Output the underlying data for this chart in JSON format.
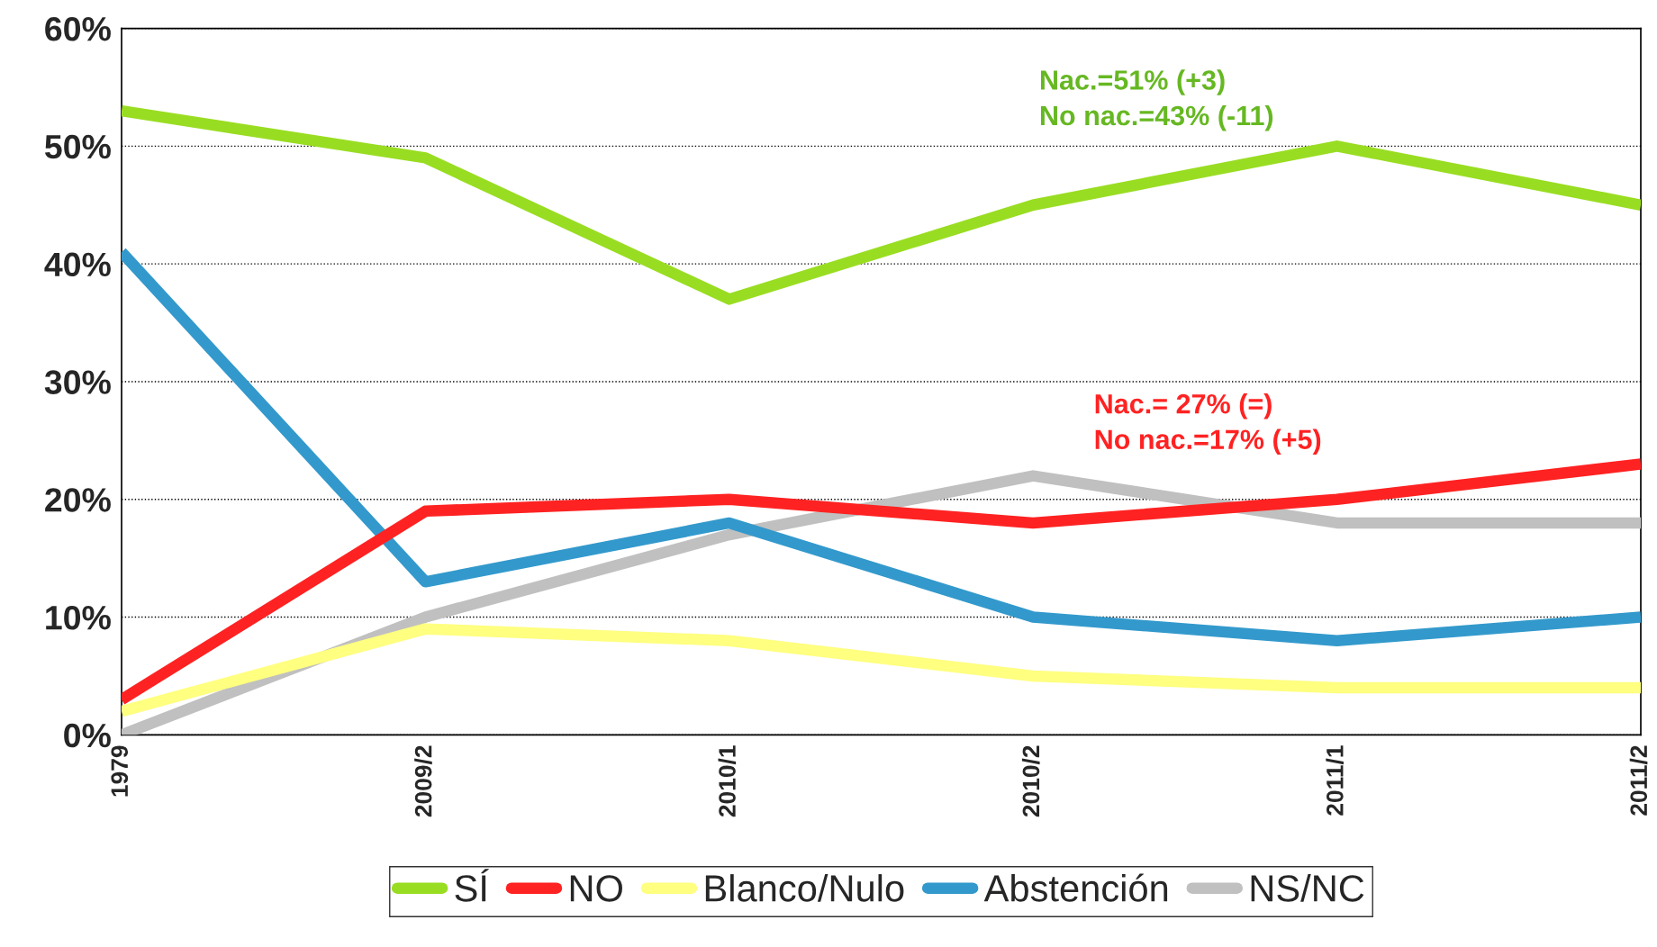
{
  "chart_data": {
    "type": "line",
    "categories": [
      "1979",
      "2009/2",
      "2010/1",
      "2010/2",
      "2011/1",
      "2011/2"
    ],
    "series": [
      {
        "name": "SÍ",
        "color": "#99dd22",
        "values": [
          53,
          49,
          37,
          45,
          50,
          45
        ]
      },
      {
        "name": "NO",
        "color": "#ff2222",
        "values": [
          3,
          19,
          20,
          18,
          20,
          23
        ]
      },
      {
        "name": "Blanco/Nulo",
        "color": "#ffff80",
        "values": [
          2,
          9,
          8,
          5,
          4,
          4
        ]
      },
      {
        "name": "Abstención",
        "color": "#3399cc",
        "values": [
          41,
          13,
          18,
          10,
          8,
          10
        ]
      },
      {
        "name": "NS/NC",
        "color": "#c0c0c0",
        "values": [
          0,
          10,
          17,
          22,
          18,
          18
        ]
      }
    ],
    "ylim": [
      0,
      60
    ],
    "yticks": [
      {
        "value": 0,
        "label": "0%"
      },
      {
        "value": 10,
        "label": "10%"
      },
      {
        "value": 20,
        "label": "20%"
      },
      {
        "value": 30,
        "label": "30%"
      },
      {
        "value": 40,
        "label": "40%"
      },
      {
        "value": 50,
        "label": "50%"
      },
      {
        "value": 60,
        "label": "60%"
      }
    ],
    "grid": "y",
    "legend": "bottom",
    "marker": "none",
    "line_style": "solid",
    "annotations": [
      "Nac.=51% (+3)\nNo nac.=43% (-11)",
      "Nac.= 27% (=)\nNo nac.=17% (+5)"
    ]
  }
}
